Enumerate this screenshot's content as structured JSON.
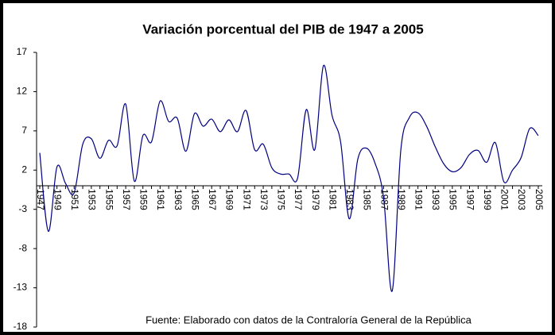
{
  "chart_data": {
    "type": "line",
    "title": "Variación porcentual del PIB de 1947 a 2005",
    "note": "Fuente: Elaborado con datos de la Contraloría General de la República",
    "categories": [
      "1947",
      null,
      "1949",
      null,
      "1951",
      null,
      "1953",
      null,
      "1955",
      null,
      "1957",
      null,
      "1959",
      null,
      "1961",
      null,
      "1963",
      null,
      "1965",
      null,
      "1967",
      null,
      "1969",
      null,
      "1971",
      null,
      "1973",
      null,
      "1975",
      null,
      "1977",
      null,
      "1979",
      null,
      "1981",
      null,
      "1983",
      null,
      "1985",
      null,
      "1987",
      null,
      "1989",
      null,
      "1991",
      null,
      "1993",
      null,
      "1995",
      null,
      "1997",
      null,
      "1999",
      null,
      "2001",
      null,
      "2003",
      null,
      "2005"
    ],
    "series": [
      {
        "name": "PIB",
        "color": "#000080",
        "values": [
          4.2,
          -5.8,
          2.4,
          0.3,
          -0.9,
          5.3,
          6.0,
          3.5,
          5.8,
          5.1,
          10.4,
          0.6,
          6.4,
          5.6,
          10.8,
          8.2,
          8.6,
          4.4,
          9.2,
          7.6,
          8.5,
          6.9,
          8.4,
          6.9,
          9.6,
          4.6,
          5.3,
          2.3,
          1.5,
          1.5,
          1.0,
          9.7,
          4.6,
          15.3,
          9.0,
          5.6,
          -4.2,
          3.4,
          4.8,
          2.9,
          -1.5,
          -13.4,
          4.5,
          8.7,
          9.3,
          7.6,
          5.0,
          2.8,
          1.8,
          2.3,
          4.0,
          4.5,
          3.0,
          5.5,
          0.5,
          2.0,
          3.6,
          7.3,
          6.4
        ]
      }
    ],
    "ylim": [
      -18,
      17
    ],
    "yticks": [
      -18,
      -13,
      -8,
      -3,
      2,
      7,
      12,
      17
    ],
    "grid": false
  }
}
